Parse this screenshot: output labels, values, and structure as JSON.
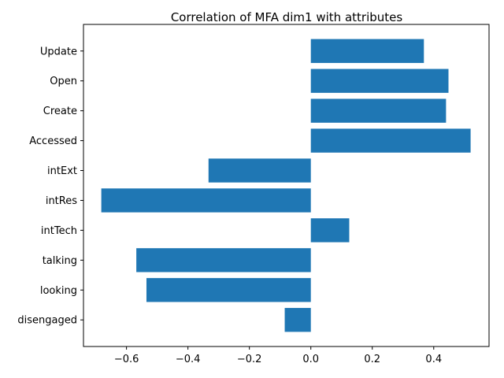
{
  "chart_data": {
    "type": "bar",
    "orientation": "horizontal",
    "title": "Correlation of MFA dim1 with attributes",
    "xlabel": "",
    "ylabel": "",
    "categories": [
      "disengaged",
      "looking",
      "talking",
      "intTech",
      "intRes",
      "intExt",
      "Accessed",
      "Create",
      "Open",
      "Update"
    ],
    "values": [
      -0.085,
      -0.535,
      -0.568,
      0.125,
      -0.682,
      -0.333,
      0.52,
      0.44,
      0.448,
      0.368
    ],
    "xlim": [
      -0.74,
      0.58
    ],
    "xticks": [
      -0.6,
      -0.4,
      -0.2,
      0.0,
      0.2,
      0.4
    ],
    "xtick_labels": [
      "−0.6",
      "−0.4",
      "−0.2",
      "0.0",
      "0.2",
      "0.4"
    ],
    "grid": false,
    "bar_color": "#1f77b4"
  }
}
